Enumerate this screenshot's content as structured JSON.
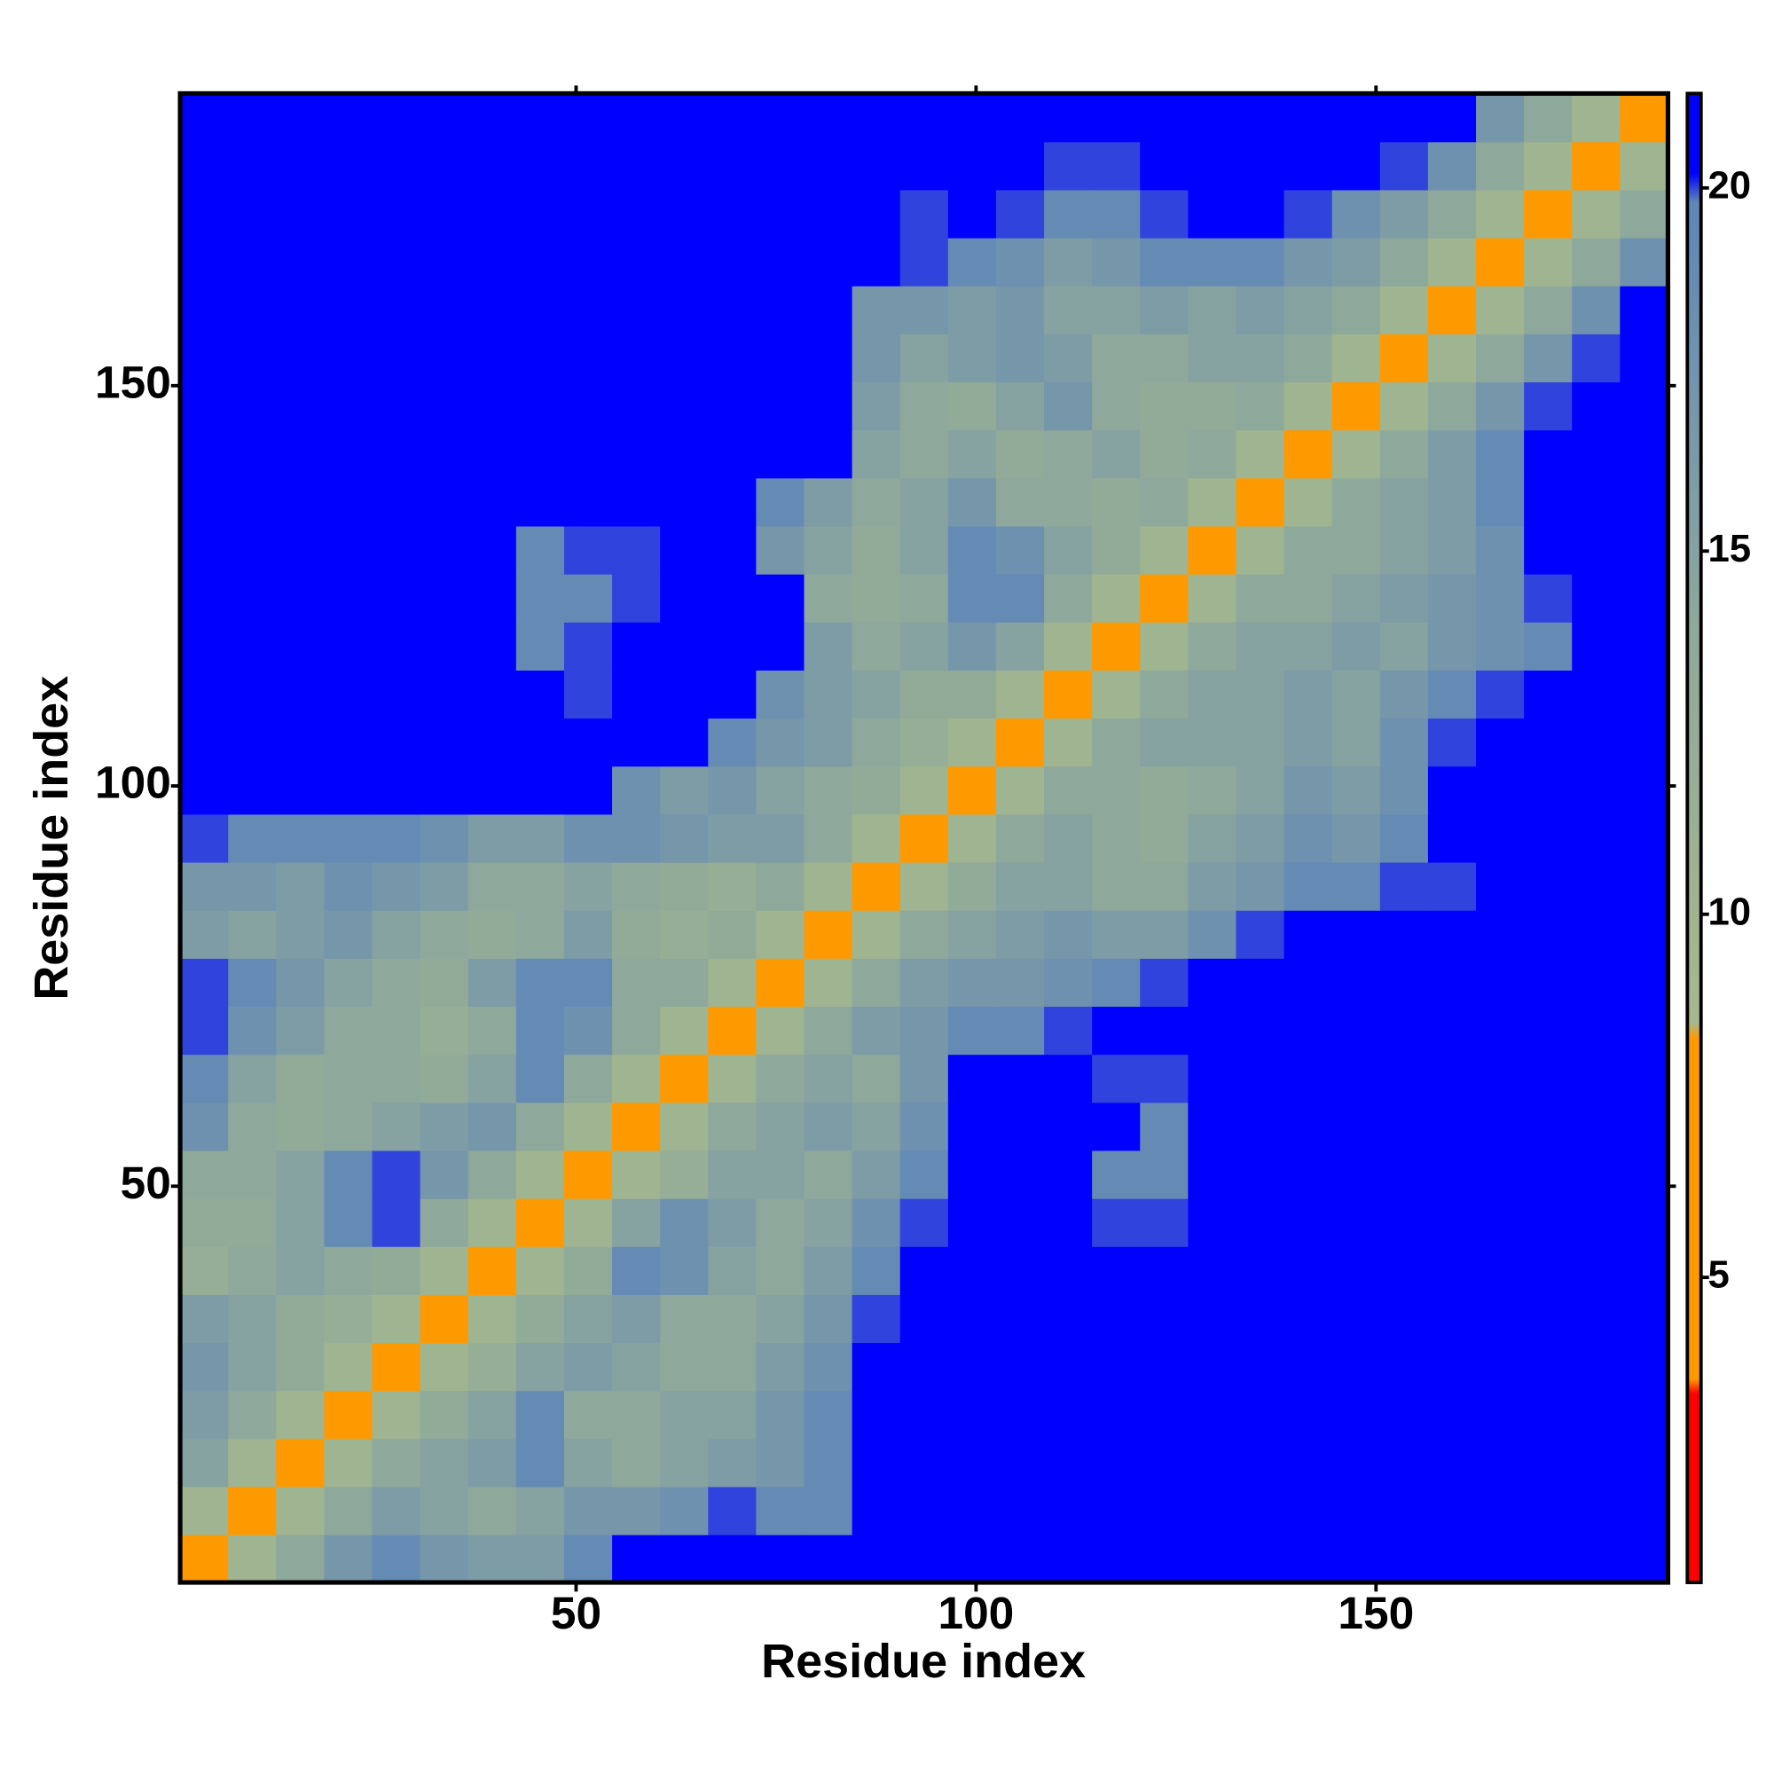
{
  "chart_data": {
    "type": "heatmap",
    "x_label": "Residue index",
    "y_label": "Residue index",
    "x": [
      3.5,
      9.5,
      15.5,
      21.5,
      27.5,
      33.5,
      39.5,
      45.5,
      51.5,
      57.5,
      63.5,
      69.5,
      75.5,
      81.5,
      87.5,
      93.5,
      99.5,
      105.5,
      111.5,
      117.5,
      123.5,
      129.5,
      135.5,
      141.5,
      147.5,
      153.5,
      159.5,
      165.5,
      171.5,
      177.5,
      183.5
    ],
    "y": [
      3.5,
      9.5,
      15.5,
      21.5,
      27.5,
      33.5,
      39.5,
      45.5,
      51.5,
      57.5,
      63.5,
      69.5,
      75.5,
      81.5,
      87.5,
      93.5,
      99.5,
      105.5,
      111.5,
      117.5,
      123.5,
      129.5,
      135.5,
      141.5,
      147.5,
      153.5,
      159.5,
      165.5,
      171.5,
      177.5,
      183.5
    ],
    "xlim": [
      0.5,
      186.5
    ],
    "ylim": [
      0.5,
      186.5
    ],
    "xticks": [
      50,
      100,
      150
    ],
    "yticks": [
      50,
      100,
      150
    ],
    "zlim": [
      0.8,
      21.3
    ],
    "zticks": [
      5,
      10,
      15,
      20
    ],
    "colorscale": [
      [
        0.8,
        "#ff0000"
      ],
      [
        3.4,
        "#ff0000"
      ],
      [
        3.6,
        "#ff9900"
      ],
      [
        8.3,
        "#ff9900"
      ],
      [
        8.5,
        "#a6b98c"
      ],
      [
        14,
        "#8ea89c"
      ],
      [
        19.8,
        "#5f86b8"
      ],
      [
        20.2,
        "#0000ff"
      ],
      [
        21.3,
        "#0000ff"
      ]
    ],
    "values": [
      [
        6,
        10,
        14,
        17,
        19,
        17,
        16,
        16,
        19,
        21,
        21,
        21,
        21,
        21,
        21,
        21,
        21,
        21,
        21,
        21,
        21,
        21,
        21,
        21,
        21,
        21,
        21,
        21,
        21,
        21,
        21
      ],
      [
        10,
        6,
        10,
        14,
        16,
        15,
        14,
        15,
        17,
        17,
        18,
        20,
        19,
        19,
        21,
        21,
        21,
        21,
        21,
        21,
        21,
        21,
        21,
        21,
        21,
        21,
        21,
        21,
        21,
        21,
        21
      ],
      [
        15,
        10,
        6,
        10,
        14,
        15,
        16,
        19,
        15,
        14,
        15,
        16,
        17,
        19,
        21,
        21,
        21,
        21,
        21,
        21,
        21,
        21,
        21,
        21,
        21,
        21,
        21,
        21,
        21,
        21,
        21
      ],
      [
        16,
        14,
        10,
        6,
        10,
        13,
        15,
        19,
        14,
        14,
        15,
        15,
        17,
        19,
        21,
        21,
        21,
        21,
        21,
        21,
        21,
        21,
        21,
        21,
        21,
        21,
        21,
        21,
        21,
        21,
        21
      ],
      [
        17,
        15,
        13,
        10,
        6,
        10,
        12,
        15,
        16,
        15,
        14,
        14,
        16,
        18,
        21,
        21,
        21,
        21,
        21,
        21,
        21,
        21,
        21,
        21,
        21,
        21,
        21,
        21,
        21,
        21,
        21
      ],
      [
        16,
        15,
        13,
        12,
        10,
        6,
        10,
        13,
        15,
        16,
        14,
        14,
        15,
        17,
        20,
        21,
        21,
        21,
        21,
        21,
        21,
        21,
        21,
        21,
        21,
        21,
        21,
        21,
        21,
        21,
        21
      ],
      [
        12,
        14,
        15,
        14,
        13,
        10,
        6,
        10,
        13,
        19,
        18,
        15,
        14,
        16,
        19,
        21,
        21,
        21,
        21,
        21,
        21,
        21,
        21,
        21,
        21,
        21,
        21,
        21,
        21,
        21,
        21
      ],
      [
        13,
        13,
        15,
        19,
        20,
        14,
        10,
        6,
        10,
        15,
        18,
        16,
        14,
        15,
        18,
        20,
        21,
        21,
        21,
        20,
        20,
        21,
        21,
        21,
        21,
        21,
        21,
        21,
        21,
        21,
        21
      ],
      [
        14,
        14,
        15,
        19,
        20,
        17,
        14,
        10,
        6,
        10,
        12,
        15,
        15,
        14,
        16,
        19,
        21,
        21,
        21,
        19,
        19,
        21,
        21,
        21,
        21,
        21,
        21,
        21,
        21,
        21,
        21
      ],
      [
        18,
        14,
        13,
        14,
        15,
        16,
        17,
        14,
        10,
        6,
        10,
        14,
        15,
        16,
        15,
        18,
        21,
        21,
        21,
        21,
        19,
        21,
        21,
        21,
        21,
        21,
        21,
        21,
        21,
        21,
        21
      ],
      [
        19,
        15,
        13,
        14,
        14,
        13,
        15,
        19,
        14,
        10,
        6,
        10,
        14,
        15,
        14,
        17,
        21,
        21,
        21,
        20,
        20,
        21,
        21,
        21,
        21,
        21,
        21,
        21,
        21,
        21,
        21
      ],
      [
        20,
        18,
        16,
        14,
        14,
        12,
        14,
        19,
        18,
        14,
        10,
        6,
        10,
        14,
        16,
        17,
        19,
        19,
        20,
        21,
        21,
        21,
        21,
        21,
        21,
        21,
        21,
        21,
        21,
        21,
        21
      ],
      [
        20,
        19,
        17,
        15,
        14,
        13,
        16,
        19,
        19,
        14,
        14,
        10,
        6,
        10,
        14,
        16,
        17,
        17,
        18,
        19,
        20,
        21,
        21,
        21,
        21,
        21,
        21,
        21,
        21,
        21,
        21
      ],
      [
        16,
        15,
        16,
        17,
        15,
        14,
        13,
        14,
        16,
        13,
        12,
        13,
        10,
        6,
        10,
        14,
        15,
        16,
        17,
        16,
        16,
        18,
        20,
        21,
        21,
        21,
        21,
        21,
        21,
        21,
        21
      ],
      [
        17,
        17,
        16,
        18,
        17,
        16,
        14,
        14,
        15,
        14,
        13,
        12,
        14,
        10,
        6,
        10,
        13,
        15,
        15,
        14,
        14,
        16,
        17,
        19,
        19,
        20,
        20,
        21,
        21,
        21,
        21
      ],
      [
        20,
        19,
        19,
        19,
        19,
        18,
        16,
        16,
        18,
        18,
        17,
        16,
        16,
        14,
        10,
        6,
        10,
        14,
        15,
        14,
        13,
        15,
        16,
        18,
        17,
        19,
        21,
        21,
        21,
        21,
        21
      ],
      [
        21,
        21,
        21,
        21,
        21,
        21,
        21,
        21,
        21,
        18,
        16,
        17,
        15,
        14,
        13,
        10,
        6,
        10,
        14,
        14,
        13,
        14,
        15,
        17,
        16,
        18,
        21,
        21,
        21,
        21,
        21
      ],
      [
        21,
        21,
        21,
        21,
        21,
        21,
        21,
        21,
        21,
        21,
        21,
        19,
        17,
        16,
        14,
        12,
        10,
        6,
        10,
        14,
        15,
        15,
        15,
        16,
        15,
        18,
        20,
        21,
        21,
        21,
        21
      ],
      [
        21,
        21,
        21,
        21,
        21,
        21,
        21,
        21,
        20,
        21,
        21,
        21,
        18,
        16,
        15,
        13,
        13,
        10,
        6,
        10,
        14,
        15,
        15,
        16,
        15,
        17,
        19,
        20,
        21,
        21,
        21
      ],
      [
        21,
        21,
        21,
        21,
        21,
        21,
        21,
        19,
        20,
        21,
        21,
        21,
        21,
        16,
        14,
        15,
        17,
        15,
        10,
        6,
        10,
        14,
        15,
        15,
        16,
        15,
        17,
        18,
        19,
        21,
        21
      ],
      [
        21,
        21,
        21,
        21,
        21,
        21,
        21,
        19,
        19,
        20,
        21,
        21,
        21,
        14,
        13,
        14,
        19,
        19,
        14,
        10,
        6,
        10,
        14,
        14,
        15,
        16,
        17,
        18,
        20,
        21,
        21
      ],
      [
        21,
        21,
        21,
        21,
        21,
        21,
        21,
        19,
        20,
        20,
        21,
        21,
        17,
        15,
        13,
        15,
        19,
        18,
        15,
        13,
        10,
        6,
        10,
        14,
        14,
        15,
        16,
        18,
        21,
        21,
        21
      ],
      [
        21,
        21,
        21,
        21,
        21,
        21,
        21,
        21,
        21,
        21,
        21,
        21,
        19,
        16,
        14,
        15,
        17,
        14,
        14,
        13,
        14,
        10,
        6,
        10,
        14,
        15,
        16,
        19,
        21,
        21,
        21
      ],
      [
        21,
        21,
        21,
        21,
        21,
        21,
        21,
        21,
        21,
        21,
        21,
        21,
        21,
        21,
        15,
        14,
        15,
        13,
        14,
        15,
        13,
        14,
        10,
        6,
        10,
        14,
        16,
        19,
        21,
        21,
        21
      ],
      [
        21,
        21,
        21,
        21,
        21,
        21,
        21,
        21,
        21,
        21,
        21,
        21,
        21,
        21,
        16,
        14,
        13,
        15,
        17,
        14,
        13,
        13,
        14,
        10,
        6,
        10,
        14,
        17,
        20,
        21,
        21
      ],
      [
        21,
        21,
        21,
        21,
        21,
        21,
        21,
        21,
        21,
        21,
        21,
        21,
        21,
        21,
        17,
        15,
        16,
        17,
        16,
        14,
        14,
        15,
        15,
        14,
        10,
        6,
        10,
        14,
        17,
        20,
        21
      ],
      [
        21,
        21,
        21,
        21,
        21,
        21,
        21,
        21,
        21,
        21,
        21,
        21,
        21,
        21,
        17,
        17,
        16,
        17,
        15,
        15,
        16,
        15,
        16,
        15,
        14,
        10,
        6,
        10,
        14,
        18,
        21
      ],
      [
        21,
        21,
        21,
        21,
        21,
        21,
        21,
        21,
        21,
        21,
        21,
        21,
        21,
        21,
        21,
        20,
        19,
        18,
        16,
        17,
        19,
        19,
        19,
        17,
        16,
        14,
        10,
        6,
        10,
        14,
        18
      ],
      [
        21,
        21,
        21,
        21,
        21,
        21,
        21,
        21,
        21,
        21,
        21,
        21,
        21,
        21,
        21,
        20,
        21,
        20,
        19,
        19,
        20,
        21,
        21,
        20,
        18,
        16,
        14,
        10,
        6,
        10,
        14
      ],
      [
        21,
        21,
        21,
        21,
        21,
        21,
        21,
        21,
        21,
        21,
        21,
        21,
        21,
        21,
        21,
        21,
        21,
        21,
        20,
        20,
        21,
        21,
        21,
        21,
        21,
        20,
        18,
        14,
        10,
        6,
        10
      ],
      [
        21,
        21,
        21,
        21,
        21,
        21,
        21,
        21,
        21,
        21,
        21,
        21,
        21,
        21,
        21,
        21,
        21,
        21,
        21,
        21,
        21,
        21,
        21,
        21,
        21,
        21,
        21,
        17,
        14,
        10,
        6
      ]
    ]
  }
}
